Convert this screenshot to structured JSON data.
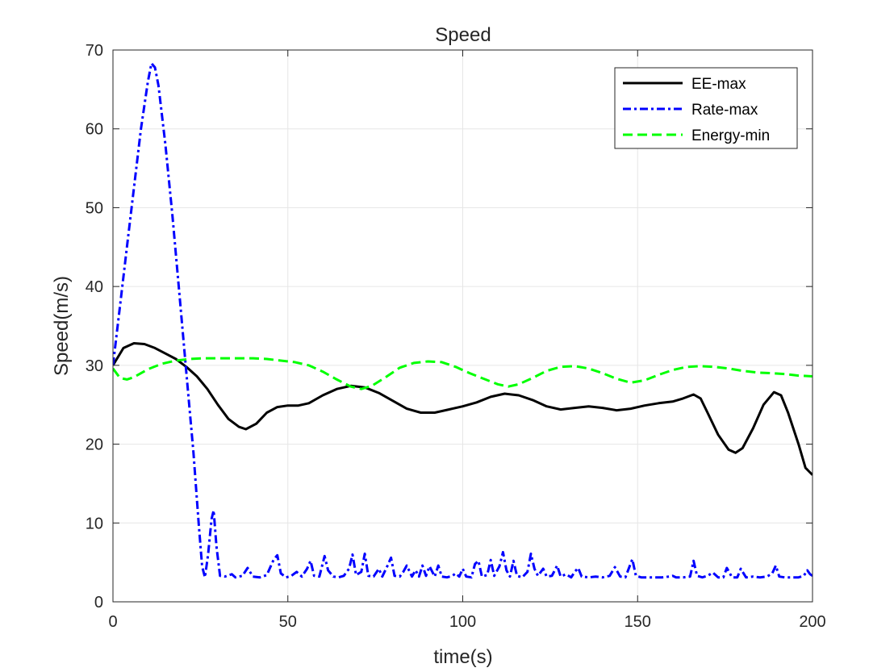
{
  "chart_data": {
    "type": "line",
    "title": "Speed",
    "xlabel": "time(s)",
    "ylabel": "Speed(m/s)",
    "xlim": [
      0,
      200
    ],
    "ylim": [
      0,
      70
    ],
    "xticks": [
      0,
      50,
      100,
      150,
      200
    ],
    "yticks": [
      0,
      10,
      20,
      30,
      40,
      50,
      60,
      70
    ],
    "grid": true,
    "legend_position": "top-right",
    "series": [
      {
        "name": "EE-max",
        "color": "#000000",
        "style": "solid",
        "points": [
          [
            0,
            30
          ],
          [
            3,
            32.2
          ],
          [
            6,
            32.8
          ],
          [
            9,
            32.7
          ],
          [
            12,
            32.2
          ],
          [
            15,
            31.5
          ],
          [
            18,
            30.8
          ],
          [
            21,
            29.8
          ],
          [
            24,
            28.6
          ],
          [
            27,
            27
          ],
          [
            30,
            25
          ],
          [
            33,
            23.2
          ],
          [
            36,
            22.2
          ],
          [
            38,
            21.9
          ],
          [
            41,
            22.6
          ],
          [
            44,
            24
          ],
          [
            47,
            24.7
          ],
          [
            50,
            24.9
          ],
          [
            53,
            24.9
          ],
          [
            56,
            25.2
          ],
          [
            60,
            26.2
          ],
          [
            64,
            27
          ],
          [
            68,
            27.4
          ],
          [
            72,
            27.2
          ],
          [
            76,
            26.5
          ],
          [
            80,
            25.5
          ],
          [
            84,
            24.5
          ],
          [
            88,
            24
          ],
          [
            92,
            24
          ],
          [
            96,
            24.4
          ],
          [
            100,
            24.8
          ],
          [
            104,
            25.3
          ],
          [
            108,
            26
          ],
          [
            112,
            26.4
          ],
          [
            116,
            26.2
          ],
          [
            120,
            25.6
          ],
          [
            124,
            24.8
          ],
          [
            128,
            24.4
          ],
          [
            132,
            24.6
          ],
          [
            136,
            24.8
          ],
          [
            140,
            24.6
          ],
          [
            144,
            24.3
          ],
          [
            148,
            24.5
          ],
          [
            152,
            24.9
          ],
          [
            156,
            25.2
          ],
          [
            160,
            25.4
          ],
          [
            163,
            25.8
          ],
          [
            166,
            26.3
          ],
          [
            168,
            25.8
          ],
          [
            170,
            24
          ],
          [
            173,
            21.2
          ],
          [
            176,
            19.3
          ],
          [
            178,
            18.9
          ],
          [
            180,
            19.5
          ],
          [
            183,
            22
          ],
          [
            186,
            25
          ],
          [
            189,
            26.6
          ],
          [
            191,
            26.2
          ],
          [
            193,
            24
          ],
          [
            196,
            20
          ],
          [
            198,
            17
          ],
          [
            200,
            16.1
          ]
        ]
      },
      {
        "name": "Rate-max",
        "color": "#0000ff",
        "style": "dashdot",
        "points": [
          [
            0,
            30
          ],
          [
            2,
            37.5
          ],
          [
            4,
            45
          ],
          [
            6,
            52.5
          ],
          [
            8,
            60
          ],
          [
            10,
            66
          ],
          [
            11,
            68.3
          ],
          [
            12,
            67.8
          ],
          [
            13,
            65.5
          ],
          [
            15,
            58
          ],
          [
            17,
            49
          ],
          [
            19,
            39
          ],
          [
            21,
            29
          ],
          [
            23,
            19
          ],
          [
            24.5,
            10
          ],
          [
            25.5,
            4.5
          ],
          [
            26.3,
            3.1
          ],
          [
            27.2,
            6
          ],
          [
            28.2,
            10.5
          ],
          [
            28.8,
            11.6
          ],
          [
            29.6,
            7
          ],
          [
            30.6,
            3.3
          ],
          [
            32,
            3.2
          ],
          [
            34,
            3.5
          ],
          [
            35,
            3.1
          ],
          [
            37,
            3.3
          ],
          [
            38.5,
            4.3
          ],
          [
            40,
            3.2
          ],
          [
            42,
            3.1
          ],
          [
            44,
            3.4
          ],
          [
            46,
            5.4
          ],
          [
            47,
            5.9
          ],
          [
            48,
            3.6
          ],
          [
            49.5,
            3.1
          ],
          [
            51,
            3.3
          ],
          [
            52.5,
            3.8
          ],
          [
            54,
            3.2
          ],
          [
            55.5,
            4.2
          ],
          [
            56.5,
            5.2
          ],
          [
            57.5,
            3.3
          ],
          [
            59,
            3.2
          ],
          [
            60.5,
            5.8
          ],
          [
            61.5,
            4
          ],
          [
            63,
            3.2
          ],
          [
            64.5,
            3.1
          ],
          [
            66,
            3.3
          ],
          [
            67.5,
            4.2
          ],
          [
            68.5,
            6
          ],
          [
            69.5,
            3.4
          ],
          [
            71,
            3.8
          ],
          [
            72,
            6.1
          ],
          [
            73,
            3.3
          ],
          [
            74.5,
            3.2
          ],
          [
            76,
            4.2
          ],
          [
            77,
            3.2
          ],
          [
            78.5,
            4.6
          ],
          [
            79.5,
            5.6
          ],
          [
            80.5,
            3.3
          ],
          [
            82,
            3.2
          ],
          [
            83,
            3.8
          ],
          [
            84,
            4.6
          ],
          [
            85.5,
            3.2
          ],
          [
            86.5,
            4
          ],
          [
            87.5,
            3.2
          ],
          [
            88.5,
            4.6
          ],
          [
            89.5,
            3.3
          ],
          [
            90.5,
            4.5
          ],
          [
            92,
            3.2
          ],
          [
            93,
            4.6
          ],
          [
            94,
            3.2
          ],
          [
            95.5,
            3.1
          ],
          [
            97,
            3.3
          ],
          [
            98,
            3.6
          ],
          [
            99,
            3.2
          ],
          [
            100,
            4.2
          ],
          [
            101,
            3.2
          ],
          [
            102.5,
            3.1
          ],
          [
            103.5,
            4.8
          ],
          [
            104.5,
            5.2
          ],
          [
            105.5,
            3.2
          ],
          [
            107,
            3.4
          ],
          [
            108,
            5.3
          ],
          [
            109,
            3.3
          ],
          [
            110.5,
            4.5
          ],
          [
            111.5,
            6.3
          ],
          [
            112.5,
            4
          ],
          [
            113.5,
            3.2
          ],
          [
            114.5,
            5.2
          ],
          [
            115.5,
            3.3
          ],
          [
            117,
            3.1
          ],
          [
            118.5,
            3.8
          ],
          [
            119.5,
            6.1
          ],
          [
            120.5,
            4.2
          ],
          [
            121.5,
            3.3
          ],
          [
            123,
            4.2
          ],
          [
            124,
            3.2
          ],
          [
            125.5,
            3.3
          ],
          [
            127,
            4.6
          ],
          [
            128,
            3.2
          ],
          [
            129.5,
            3.5
          ],
          [
            131,
            3.1
          ],
          [
            132,
            3.8
          ],
          [
            133,
            4.3
          ],
          [
            134,
            3.2
          ],
          [
            136,
            3.1
          ],
          [
            138,
            3.2
          ],
          [
            140,
            3.1
          ],
          [
            142,
            3.3
          ],
          [
            143.5,
            4.4
          ],
          [
            145,
            3.2
          ],
          [
            146.5,
            3.1
          ],
          [
            148.5,
            5.4
          ],
          [
            149.5,
            3.3
          ],
          [
            151,
            3.1
          ],
          [
            153,
            3.1
          ],
          [
            155,
            3.1
          ],
          [
            157,
            3.1
          ],
          [
            159,
            3.2
          ],
          [
            160,
            3.3
          ],
          [
            161,
            3.1
          ],
          [
            163,
            3.1
          ],
          [
            165,
            3.2
          ],
          [
            166,
            5.2
          ],
          [
            167,
            3.3
          ],
          [
            168.5,
            3.1
          ],
          [
            170,
            3.3
          ],
          [
            171.5,
            3.7
          ],
          [
            173,
            3.1
          ],
          [
            174.5,
            3.1
          ],
          [
            175.5,
            4.3
          ],
          [
            177,
            3.1
          ],
          [
            178.5,
            3.1
          ],
          [
            179.5,
            4.2
          ],
          [
            181,
            3.1
          ],
          [
            183,
            3.2
          ],
          [
            185,
            3.1
          ],
          [
            187,
            3.2
          ],
          [
            188.5,
            3.6
          ],
          [
            189.5,
            4.6
          ],
          [
            190.5,
            3.2
          ],
          [
            192,
            3.1
          ],
          [
            194,
            3.1
          ],
          [
            196,
            3.1
          ],
          [
            197.5,
            3.3
          ],
          [
            198.5,
            4
          ],
          [
            199.3,
            3.5
          ],
          [
            200,
            3.3
          ]
        ]
      },
      {
        "name": "Energy-min",
        "color": "#00ff00",
        "style": "dashed",
        "points": [
          [
            0,
            29.6
          ],
          [
            2,
            28.4
          ],
          [
            4,
            28.2
          ],
          [
            6,
            28.5
          ],
          [
            10,
            29.5
          ],
          [
            14,
            30.2
          ],
          [
            18,
            30.6
          ],
          [
            22,
            30.8
          ],
          [
            26,
            30.9
          ],
          [
            30,
            30.9
          ],
          [
            35,
            30.9
          ],
          [
            40,
            30.9
          ],
          [
            44,
            30.8
          ],
          [
            48,
            30.6
          ],
          [
            52,
            30.4
          ],
          [
            56,
            30
          ],
          [
            60,
            29.2
          ],
          [
            64,
            28.2
          ],
          [
            68,
            27.3
          ],
          [
            71,
            27
          ],
          [
            74,
            27.4
          ],
          [
            78,
            28.5
          ],
          [
            82,
            29.7
          ],
          [
            86,
            30.3
          ],
          [
            90,
            30.5
          ],
          [
            94,
            30.4
          ],
          [
            98,
            29.8
          ],
          [
            102,
            29
          ],
          [
            106,
            28.3
          ],
          [
            110,
            27.6
          ],
          [
            113,
            27.3
          ],
          [
            116,
            27.6
          ],
          [
            120,
            28.4
          ],
          [
            124,
            29.3
          ],
          [
            128,
            29.8
          ],
          [
            132,
            29.9
          ],
          [
            136,
            29.6
          ],
          [
            140,
            29
          ],
          [
            144,
            28.3
          ],
          [
            148,
            27.8
          ],
          [
            152,
            28.1
          ],
          [
            156,
            28.8
          ],
          [
            160,
            29.4
          ],
          [
            164,
            29.8
          ],
          [
            168,
            29.9
          ],
          [
            172,
            29.8
          ],
          [
            176,
            29.6
          ],
          [
            180,
            29.3
          ],
          [
            184,
            29.1
          ],
          [
            188,
            29
          ],
          [
            192,
            28.9
          ],
          [
            196,
            28.7
          ],
          [
            200,
            28.6
          ]
        ]
      }
    ]
  }
}
